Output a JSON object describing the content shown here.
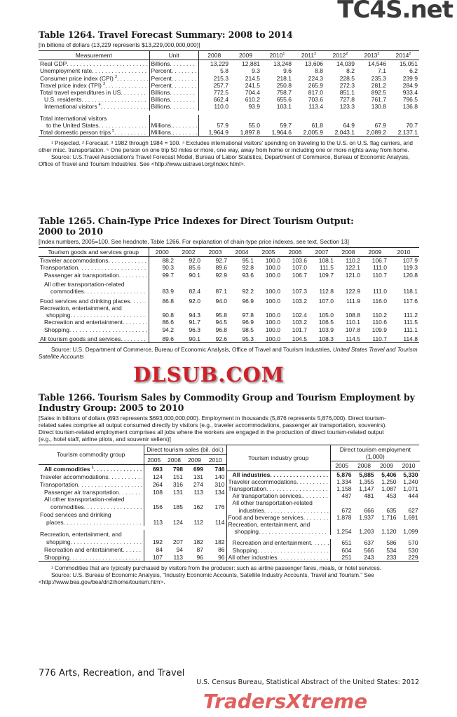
{
  "watermarks": {
    "top": "TC4S.net",
    "middle": "DLSUB.COM",
    "bottom": "TradersXtreme"
  },
  "colors": {
    "watermark_red": "#d0202a",
    "watermark_dark": "#3a3a3a",
    "text": "#1a1a1a"
  },
  "t1264": {
    "title": "Table 1264. Travel Forecast Summary: 2008 to 2014",
    "headnote": "[In billions of dollars (13,229 represents $13,229,000,000,000)]",
    "columns": [
      {
        "l": "Measurement"
      },
      {
        "l": "Unit"
      },
      {
        "l": "2008"
      },
      {
        "l": "2009"
      },
      {
        "l": "2010",
        "s": "1"
      },
      {
        "l": "2011",
        "s": "2"
      },
      {
        "l": "2012",
        "s": "2"
      },
      {
        "l": "2013",
        "s": "2"
      },
      {
        "l": "2014",
        "s": "2"
      }
    ],
    "rows": [
      {
        "label": "Real GDP",
        "unit": "Billions",
        "v": [
          "13,229",
          "12,881",
          "13,248",
          "13,606",
          "14,039",
          "14,546",
          "15,051"
        ]
      },
      {
        "label": "Unemployment rate",
        "unit": "Percent",
        "v": [
          "5.8",
          "9.3",
          "9.6",
          "8.8",
          "8.2",
          "7.1",
          "6.2"
        ]
      },
      {
        "label": "Consumer price index (CPI)",
        "sup": "3",
        "unit": "Percent",
        "v": [
          "215.3",
          "214.5",
          "218.1",
          "224.3",
          "228.5",
          "235.3",
          "239.9"
        ]
      },
      {
        "label": "Travel price index (TPI)",
        "sup": "3",
        "unit": "Percent",
        "v": [
          "257.7",
          "241.5",
          "250.8",
          "265.9",
          "272.3",
          "281.2",
          "284.9"
        ]
      },
      {
        "label": "Total travel expenditures in US",
        "unit": "Billions",
        "v": [
          "772.5",
          "704.4",
          "758.7",
          "817.0",
          "851.1",
          "892.5",
          "933.4"
        ]
      },
      {
        "label": "U.S. residents",
        "indent": 1,
        "unit": "Billions",
        "v": [
          "662.4",
          "610.2",
          "655.6",
          "703.6",
          "727.8",
          "761.7",
          "796.5"
        ]
      },
      {
        "label": "International visitors",
        "sup": "4",
        "indent": 1,
        "unit": "Billions",
        "v": [
          "110.0",
          "93.9",
          "103.1",
          "113.4",
          "123.3",
          "130.8",
          "136.8"
        ]
      },
      {
        "spacer": true
      },
      {
        "lines": [
          "Total international visitors",
          "to the United States"
        ],
        "unit": "Millions.",
        "v": [
          "57.9",
          "55.0",
          "59.7",
          "61.8",
          "64.9",
          "67.9",
          "70.7"
        ]
      },
      {
        "label": "Total domestic person trips",
        "sup": "5",
        "unit": "Millions.",
        "v": [
          "1,964.9",
          "1,897.8",
          "1,964.6",
          "2,005.9",
          "2,043.1",
          "2,089.2",
          "2,137.1"
        ]
      }
    ],
    "footnotes": "¹ Projected. ² Forecast. ³ 1982 through 1984 = 100. ⁴ Excludes international visitors' spending on traveling to the U.S. on U.S. flag carriers, and other misc. transportation. ⁵ One person on one trip 50 miles or more, one way, away from home or including one or more nights away from home.",
    "source": "Source: U.S.Travel Association's Travel Forecast Model, Bureau of Labor Statistics, Department of Commerce, Bureau of Economic Analysis, Office of Travel and Tourism Industries. See <http://www.ustravel.org/index.html>."
  },
  "t1265": {
    "title": "Table 1265. Chain-Type Price Indexes for Direct Tourism Output: 2000 to 2010",
    "headnote": "[Index numbers, 2005=100. See headnote, Table 1266. For explanation of chain-type price indexes, see text, Section 13]",
    "columns": [
      {
        "l": "Tourism goods and services group"
      },
      {
        "l": "2000"
      },
      {
        "l": "2002"
      },
      {
        "l": "2003"
      },
      {
        "l": "2004"
      },
      {
        "l": "2005"
      },
      {
        "l": "2006"
      },
      {
        "l": "2007"
      },
      {
        "l": "2008"
      },
      {
        "l": "2009"
      },
      {
        "l": "2010"
      }
    ],
    "rows": [
      {
        "label": "Traveler accommodations",
        "v": [
          "88.2",
          "92.0",
          "92.7",
          "95.1",
          "100.0",
          "103.6",
          "108.1",
          "110.2",
          "106.7",
          "107.9"
        ]
      },
      {
        "label": "Transportation",
        "v": [
          "90.3",
          "85.6",
          "89.6",
          "92.8",
          "100.0",
          "107.0",
          "111.5",
          "122.1",
          "111.0",
          "119.3"
        ]
      },
      {
        "label": "Passenger air transportation",
        "indent": 1,
        "v": [
          "99.7",
          "90.1",
          "92.9",
          "93.6",
          "100.0",
          "106.7",
          "109.7",
          "121.0",
          "110.7",
          "120.8"
        ]
      },
      {
        "lines": [
          "All other transportation-related",
          "commodities"
        ],
        "indent": 1,
        "gap": true,
        "v": [
          "83.9",
          "82.4",
          "87.1",
          "92.2",
          "100.0",
          "107.3",
          "112.8",
          "122.9",
          "111.0",
          "118.1"
        ]
      },
      {
        "label": "Food services and drinking places",
        "gap": true,
        "v": [
          "86.8",
          "92.0",
          "94.0",
          "96.9",
          "100.0",
          "103.2",
          "107.0",
          "111.9",
          "116.0",
          "117.6"
        ]
      },
      {
        "lines": [
          "Recreation, entertainment, and",
          "shopping"
        ],
        "v": [
          "90.8",
          "94.3",
          "95.8",
          "97.8",
          "100.0",
          "102.4",
          "105.0",
          "108.8",
          "110.2",
          "111.2"
        ]
      },
      {
        "label": "Recreation and entertainment",
        "indent": 1,
        "v": [
          "86.6",
          "91.7",
          "94.5",
          "96.9",
          "100.0",
          "103.2",
          "106.5",
          "110.1",
          "110.6",
          "111.5"
        ]
      },
      {
        "label": "Shopping",
        "indent": 1,
        "v": [
          "94.2",
          "96.3",
          "96.8",
          "98.5",
          "100.0",
          "101.7",
          "103.9",
          "107.8",
          "109.9",
          "111.1"
        ]
      },
      {
        "label": "All tourism goods and services",
        "gap": true,
        "v": [
          "89.6",
          "90.1",
          "92.6",
          "95.3",
          "100.0",
          "104.5",
          "108.3",
          "114.5",
          "110.7",
          "114.8"
        ]
      }
    ],
    "source": "Source: U.S. Department of Commerce, Bureau of Economic Analysis, Office of Travel and Tourism Industries,",
    "source_italic": "United States Travel and Tourism Satellite Accounts"
  },
  "t1266": {
    "title": "Table 1266. Tourism Sales by Commodity Group and Tourism Employment by Industry Group: 2005 to 2010",
    "headnote": "[Sales in billions of dollars (693 represents $693,000,000,000). Employment in thousands (5,876 represents 5,876,000). Direct tourism-related sales comprise all output consumed directly by visitors (e.g., traveler accommodations, passenger air transportation, souvenirs). Direct tourism-related employment comprises all jobs where the workers are engaged in the production of direct tourism-related output (e.g., hotel staff, airline pilots, and souvenir sellers)]",
    "left": {
      "group_header": "Tourism commodity group",
      "span_header": "Direct tourism sales (bil. dol.)",
      "years": [
        "2005",
        "2008",
        "2009",
        "2010"
      ],
      "rows": [
        {
          "label": "All commodities",
          "sup": "1",
          "bold": true,
          "indent": 1,
          "v": [
            "693",
            "798",
            "699",
            "746"
          ]
        },
        {
          "label": "Traveler accommodations",
          "v": [
            "124",
            "151",
            "131",
            "140"
          ]
        },
        {
          "label": "Transportation",
          "v": [
            "264",
            "316",
            "274",
            "310"
          ]
        },
        {
          "label": "Passenger air transportation",
          "indent": 1,
          "v": [
            "108",
            "131",
            "113",
            "134"
          ]
        },
        {
          "lines": [
            "All other transportation-related",
            "commodities"
          ],
          "indent": 1,
          "v": [
            "156",
            "185",
            "162",
            "176"
          ]
        },
        {
          "lines": [
            "Food services and drinking",
            "places"
          ],
          "v": [
            "113",
            "124",
            "112",
            "114"
          ]
        },
        {
          "spacer": true
        },
        {
          "lines": [
            "Recreation, entertainment, and",
            "shopping"
          ],
          "v": [
            "192",
            "207",
            "182",
            "182"
          ]
        },
        {
          "label": "Recreation and entertainment",
          "indent": 1,
          "v": [
            "84",
            "94",
            "87",
            "86"
          ]
        },
        {
          "label": "Shopping",
          "indent": 1,
          "v": [
            "107",
            "113",
            "96",
            "96"
          ]
        }
      ]
    },
    "right": {
      "group_header": "Tourism industry group",
      "span_header": "Direct tourism employment (1,000)",
      "years": [
        "2005",
        "2008",
        "2009",
        "2010"
      ],
      "rows": [
        {
          "label": "All industries",
          "bold": true,
          "indent": 1,
          "v": [
            "5,876",
            "5,885",
            "5,406",
            "5,330"
          ]
        },
        {
          "label": "Traveler accommodations",
          "v": [
            "1,334",
            "1,355",
            "1,250",
            "1,240"
          ]
        },
        {
          "label": "Transportation",
          "v": [
            "1,158",
            "1,147",
            "1,087",
            "1,071"
          ]
        },
        {
          "label": "Air transportation services.",
          "indent": 1,
          "v": [
            "487",
            "481",
            "453",
            "444"
          ]
        },
        {
          "lines": [
            "All other transportation-related",
            "industries"
          ],
          "indent": 1,
          "v": [
            "672",
            "666",
            "635",
            "627"
          ]
        },
        {
          "label": "Food and beverage services",
          "v": [
            "1,878",
            "1,937",
            "1,716",
            "1,691"
          ]
        },
        {
          "lines": [
            "Recreation, entertainment, and",
            "shopping"
          ],
          "v": [
            "1,254",
            "1,203",
            "1,120",
            "1,099"
          ]
        },
        {
          "spacer": true
        },
        {
          "label": "Recreation and entertainment",
          "indent": 1,
          "v": [
            "651",
            "637",
            "586",
            "570"
          ]
        },
        {
          "label": "Shopping",
          "indent": 1,
          "v": [
            "604",
            "566",
            "534",
            "530"
          ]
        },
        {
          "label": "All other industries",
          "v": [
            "251",
            "243",
            "233",
            "229"
          ]
        }
      ]
    },
    "footnotes": "¹ Commodities that are typically purchased by visitors from the producer: such as airline passenger fares, meals, or hotel services.",
    "source": "Source: U.S. Bureau of Economic Analysis, “Industry Economic  Accounts, Satellite Industry Accounts, Travel and Tourism.” See <http://www.bea.gov/bea/dn2/home/tourism.htm>."
  },
  "footer": {
    "page": "776  Arts, Recreation, and Travel",
    "publication": "U.S. Census Bureau, Statistical Abstract of the United States: 2012"
  }
}
